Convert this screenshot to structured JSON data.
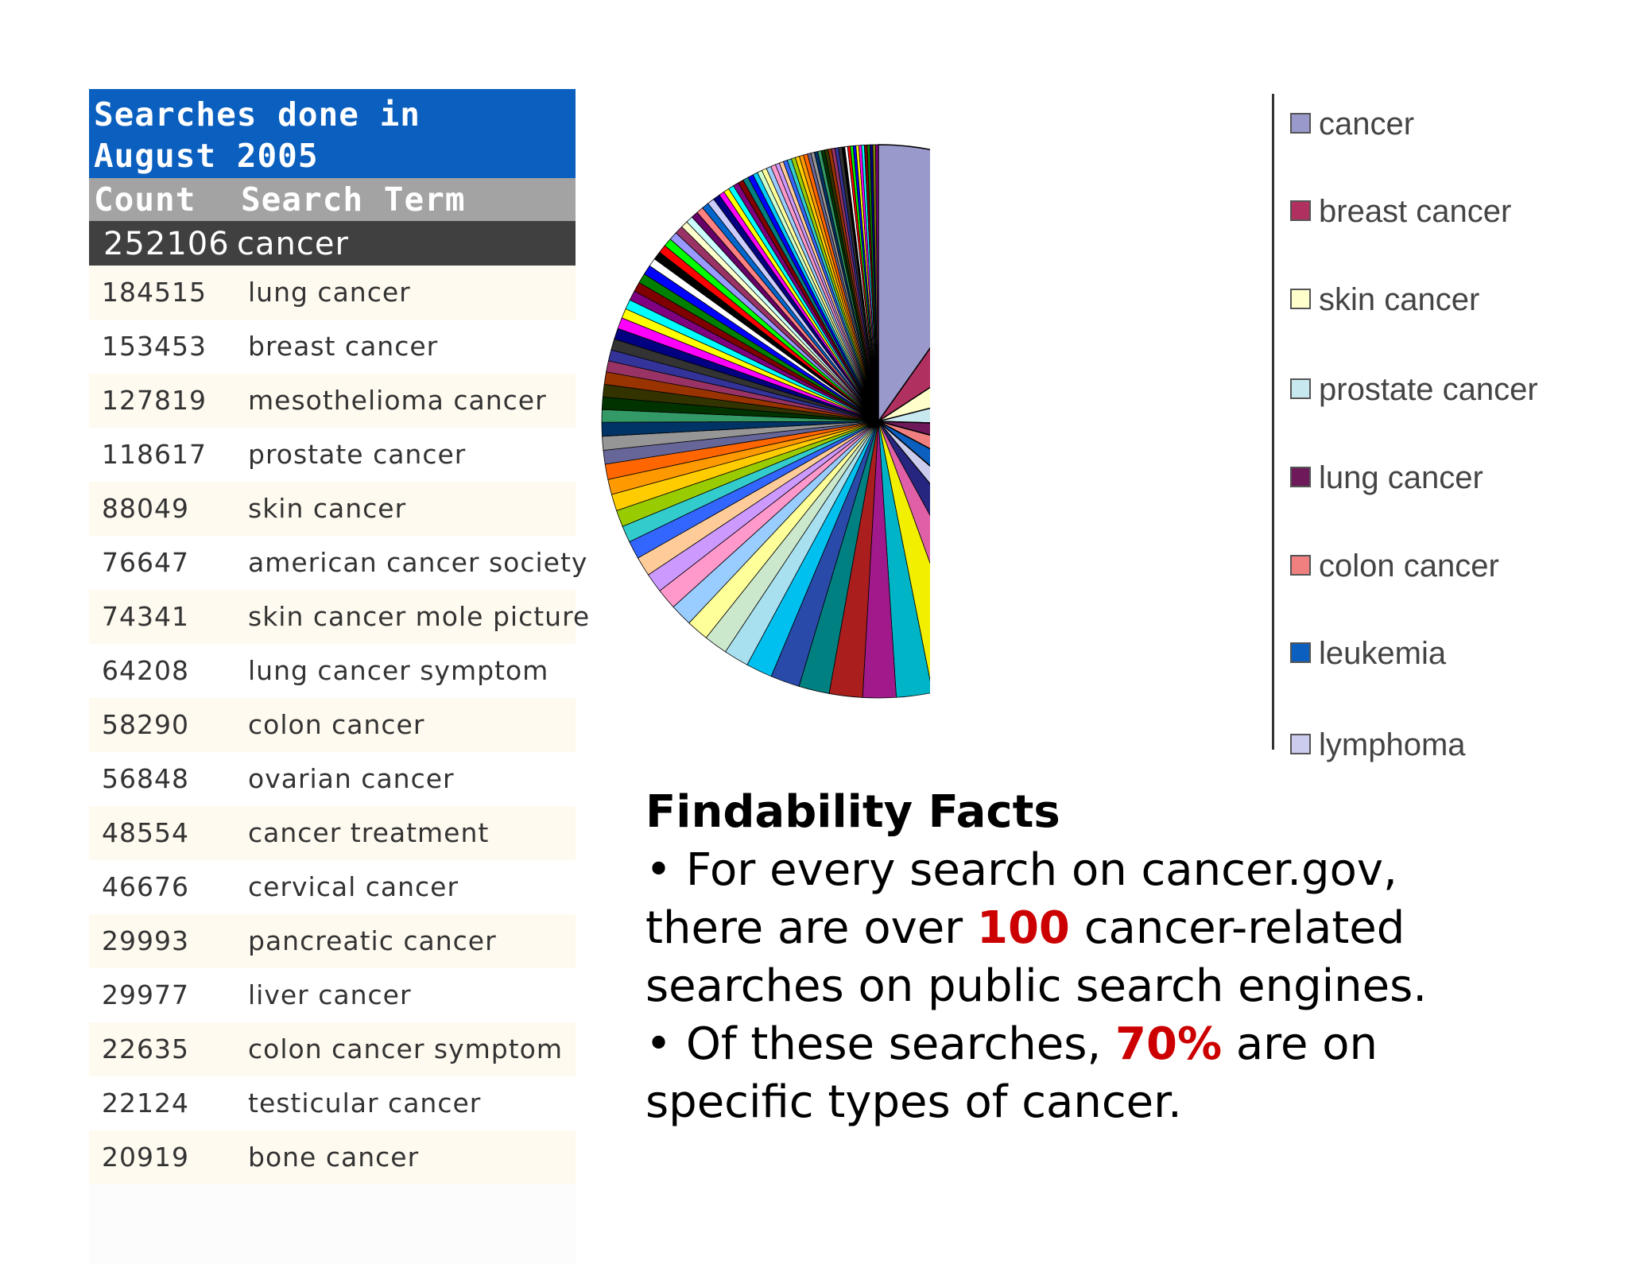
{
  "table": {
    "title_line1": "Searches done in",
    "title_line2": "August 2005",
    "header_count": "Count",
    "header_term": "Search Term",
    "top_row": {
      "count": "252106",
      "term": "cancer"
    },
    "rows": [
      {
        "count": "184515",
        "term": "lung cancer"
      },
      {
        "count": "153453",
        "term": "breast cancer"
      },
      {
        "count": "127819",
        "term": "mesothelioma cancer"
      },
      {
        "count": "118617",
        "term": "prostate cancer"
      },
      {
        "count": "88049",
        "term": "skin cancer"
      },
      {
        "count": "76647",
        "term": "american cancer society"
      },
      {
        "count": "74341",
        "term": "skin cancer mole picture"
      },
      {
        "count": "64208",
        "term": "lung cancer symptom"
      },
      {
        "count": "58290",
        "term": "colon cancer"
      },
      {
        "count": "56848",
        "term": "ovarian cancer"
      },
      {
        "count": "48554",
        "term": "cancer treatment"
      },
      {
        "count": "46676",
        "term": "cervical cancer"
      },
      {
        "count": "29993",
        "term": "pancreatic cancer"
      },
      {
        "count": "29977",
        "term": "liver cancer"
      },
      {
        "count": "22635",
        "term": "colon cancer symptom"
      },
      {
        "count": "22124",
        "term": "testicular cancer"
      },
      {
        "count": "20919",
        "term": "bone cancer"
      }
    ]
  },
  "chart_data": {
    "type": "pie",
    "title": "",
    "legend_position": "right",
    "labels": [
      "cancer",
      "breast cancer",
      "skin cancer",
      "prostate cancer",
      "lung cancer",
      "colon cancer",
      "leukemia",
      "lymphoma"
    ],
    "values": [
      12.1,
      7.4,
      6.5,
      5.5,
      4.5,
      4.5,
      4.4,
      3.3
    ],
    "colors": [
      "#9999cc",
      "#b03060",
      "#ffffcc",
      "#c8e8f0",
      "#6e1a5a",
      "#f08080",
      "#0a5fbf",
      "#ccccee"
    ],
    "remainder_slices": {
      "values": [
        3.7,
        3.0,
        3.0,
        2.6,
        2.4,
        2.4,
        2.2,
        2.1,
        1.9,
        1.8,
        1.7,
        1.6,
        1.6,
        1.5,
        1.4,
        1.4,
        1.3,
        1.2,
        1.2,
        1.2,
        1.1,
        1.1,
        1.0,
        1.0,
        1.0,
        0.9,
        0.9,
        0.9,
        0.9,
        0.8,
        0.8,
        0.8,
        0.8,
        0.8,
        0.7,
        0.7,
        0.7,
        0.7,
        0.7,
        0.7,
        0.6,
        0.6,
        0.6,
        0.6,
        0.6,
        0.6,
        0.5,
        0.5,
        0.5,
        0.5,
        0.5,
        0.5,
        0.5,
        0.4,
        0.4,
        0.4,
        0.4,
        0.4,
        0.4,
        0.4,
        0.35,
        0.35,
        0.35,
        0.35,
        0.35,
        0.3,
        0.3,
        0.3,
        0.3,
        0.3,
        0.3,
        0.3,
        0.3,
        0.25,
        0.25,
        0.25,
        0.25,
        0.25,
        0.25,
        0.25,
        0.25,
        0.25,
        0.25,
        0.2,
        0.2,
        0.2,
        0.2,
        0.2,
        0.2,
        0.2,
        0.2,
        0.2,
        0.2,
        0.2,
        0.2,
        0.2
      ],
      "colors": [
        "#262680",
        "#e060a8",
        "#f2f000",
        "#00b4c8",
        "#a01a8c",
        "#aa1e1e",
        "#008080",
        "#2a4aaa",
        "#00c0f0",
        "#a8e0f0",
        "#cce8cc",
        "#ffff99",
        "#99ccff",
        "#ff99cc",
        "#cc99ff",
        "#ffcc99",
        "#3366ff",
        "#33cccc",
        "#99cc00",
        "#ffcc00",
        "#ff9900",
        "#ff6600",
        "#666699",
        "#969696",
        "#003366",
        "#339966",
        "#003300",
        "#333300",
        "#993300",
        "#993366",
        "#333399",
        "#333333",
        "#000080",
        "#ff00ff",
        "#ffff00",
        "#00ffff",
        "#800080",
        "#800000",
        "#008000",
        "#0000ff",
        "#ffffff",
        "#000000",
        "#ff0000",
        "#00ff00",
        "#9999ff",
        "#993366",
        "#ffffcc",
        "#ccffff",
        "#660066",
        "#ff8080",
        "#0066cc",
        "#ccccff",
        "#000080",
        "#ff00ff",
        "#ffff00",
        "#00ffff",
        "#800080",
        "#800000",
        "#008080",
        "#0000ff",
        "#00ccff",
        "#ccffcc",
        "#ffff99",
        "#99ccff",
        "#ff99cc",
        "#cc99ff",
        "#ffcc99",
        "#3366ff",
        "#33cccc",
        "#99cc00",
        "#ffcc00",
        "#ff9900",
        "#ff6600",
        "#666699",
        "#969696",
        "#003366",
        "#339966",
        "#003300",
        "#333300",
        "#993300",
        "#993366",
        "#333399",
        "#333333",
        "#000000",
        "#ffffff",
        "#ff0000",
        "#00ff00",
        "#0000ff",
        "#ffff00",
        "#ff00ff",
        "#00ffff",
        "#800000",
        "#008000",
        "#000080",
        "#808000",
        "#800080"
      ]
    }
  },
  "facts": {
    "heading": "Findability Facts",
    "line1": "• For every search on cancer.gov,",
    "line2_pre": "there are over ",
    "line2_hl": "100",
    "line2_post": " cancer-related",
    "line3": "searches on public search engines.",
    "line4_pre": "• Of these searches, ",
    "line4_hl": "70%",
    "line4_post": " are on",
    "line5": "specific types of cancer."
  }
}
